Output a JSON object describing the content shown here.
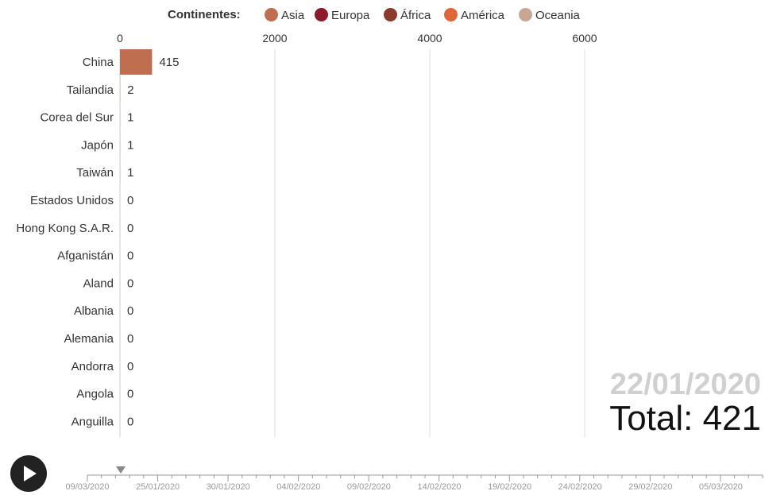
{
  "legend": {
    "title": "Continentes:",
    "items": [
      {
        "label": "Asia",
        "color": "#c06e50"
      },
      {
        "label": "Europa",
        "color": "#8b1a2b"
      },
      {
        "label": "África",
        "color": "#8b3a2e"
      },
      {
        "label": "América",
        "color": "#e0663a"
      },
      {
        "label": "Oceania",
        "color": "#c9a694"
      }
    ]
  },
  "chart_data": {
    "type": "bar",
    "orientation": "horizontal",
    "categories": [
      "China",
      "Tailandia",
      "Corea del Sur",
      "Japón",
      "Taiwán",
      "Estados Unidos",
      "Hong Kong S.A.R.",
      "Afganistán",
      "Aland",
      "Albania",
      "Alemania",
      "Andorra",
      "Angola",
      "Anguilla"
    ],
    "values": [
      415,
      2,
      1,
      1,
      1,
      0,
      0,
      0,
      0,
      0,
      0,
      0,
      0,
      0
    ],
    "continent": [
      "Asia",
      "Asia",
      "Asia",
      "Asia",
      "Asia",
      "América",
      "Asia",
      "Asia",
      "Europa",
      "Europa",
      "Europa",
      "Europa",
      "África",
      "América"
    ],
    "x_ticks": [
      0,
      2000,
      4000,
      6000
    ],
    "xlim": [
      0,
      8300
    ],
    "grid": true
  },
  "date": "22/01/2020",
  "total": "Total: 421",
  "timeline": {
    "labels": [
      "09/03/2020",
      "25/01/2020",
      "30/01/2020",
      "04/02/2020",
      "09/02/2020",
      "14/02/2020",
      "19/02/2020",
      "24/02/2020",
      "29/02/2020",
      "05/03/2020"
    ]
  },
  "icons": {
    "play": "play-icon"
  }
}
